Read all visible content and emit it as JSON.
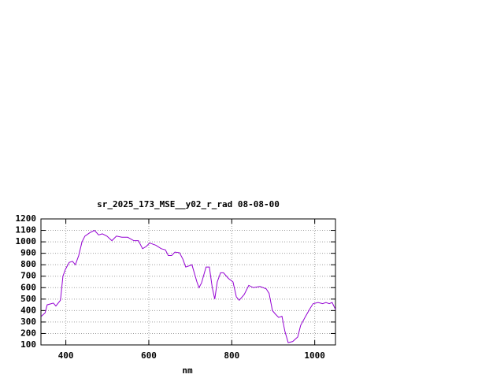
{
  "chart_data": {
    "type": "line",
    "title": "sr_2025_173_MSE__y02_r_rad 08-08-00",
    "x_label": "nm",
    "x": [
      341,
      350,
      355,
      365,
      370,
      376,
      387,
      393,
      399,
      408,
      416,
      423,
      431,
      439,
      446,
      458,
      469,
      479,
      488,
      499,
      511,
      522,
      535,
      549,
      564,
      575,
      585,
      594,
      602,
      617,
      630,
      640,
      647,
      655,
      663,
      674,
      682,
      689,
      697,
      704,
      716,
      721,
      727,
      738,
      746,
      753,
      759,
      765,
      773,
      780,
      792,
      803,
      811,
      818,
      830,
      841,
      852,
      868,
      883,
      890,
      898,
      905,
      913,
      921,
      928,
      936,
      947,
      959,
      966,
      978,
      989,
      996,
      1008,
      1019,
      1027,
      1035,
      1042,
      1050
    ],
    "series": [
      {
        "color": "#9400d3",
        "values": [
          350,
          380,
          450,
          460,
          465,
          440,
          490,
          700,
          760,
          820,
          830,
          800,
          880,
          1000,
          1050,
          1080,
          1100,
          1060,
          1070,
          1050,
          1010,
          1050,
          1040,
          1040,
          1010,
          1010,
          940,
          960,
          990,
          970,
          940,
          930,
          880,
          880,
          910,
          905,
          850,
          780,
          790,
          800,
          650,
          600,
          640,
          780,
          780,
          600,
          500,
          650,
          730,
          730,
          680,
          650,
          520,
          490,
          540,
          620,
          600,
          610,
          590,
          550,
          400,
          370,
          340,
          350,
          220,
          120,
          130,
          170,
          270,
          350,
          420,
          460,
          470,
          460,
          470,
          460,
          470,
          410
        ]
      }
    ],
    "xlim": [
      340,
      1050
    ],
    "xticks": [
      400,
      600,
      800,
      1000
    ],
    "ylim": [
      100,
      1200
    ],
    "yticks": [
      100,
      200,
      300,
      400,
      500,
      600,
      700,
      800,
      900,
      1000,
      1100,
      1200
    ],
    "grid": true
  }
}
